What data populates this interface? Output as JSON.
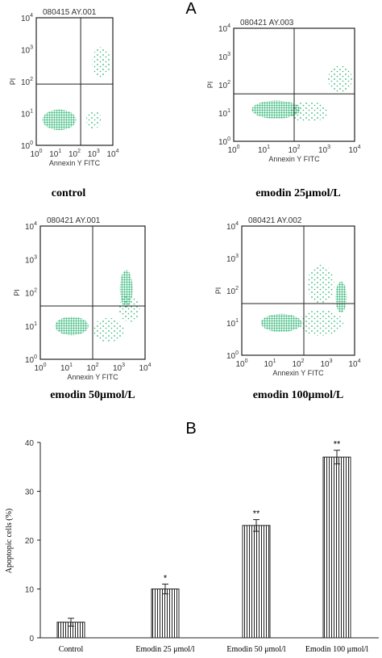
{
  "panel_a": {
    "label": "A",
    "axis_ticks": [
      {
        "base": "10",
        "exp": "0"
      },
      {
        "base": "10",
        "exp": "1"
      },
      {
        "base": "10",
        "exp": "2"
      },
      {
        "base": "10",
        "exp": "3"
      },
      {
        "base": "10",
        "exp": "4"
      }
    ],
    "plots": [
      {
        "id": "080415 AY.001",
        "caption": "control",
        "y_label": "PI",
        "x_label": "Annexin Y FITC"
      },
      {
        "id": "080421 AY.003",
        "caption": "emodin 25μmol/L",
        "y_label": "PI",
        "x_label": "Annexin Y FITC"
      },
      {
        "id": "080421 AY.001",
        "caption": "emodin 50μmol/L",
        "y_label": "PI",
        "x_label": "Annexin Y FITC"
      },
      {
        "id": "080421 AY.002",
        "caption": "emodin 100μmol/L",
        "y_label": "PI",
        "x_label": "Annexin Y FITC"
      }
    ]
  },
  "chart_data": {
    "type": "bar",
    "title": "B",
    "y_label": "Apoptopic cells (%)",
    "categories": [
      "Control",
      "Emodin  25 μmol/l",
      "Emodin  50 μmol/l",
      "Emodin  100 μmol/l"
    ],
    "values": [
      3.2,
      10,
      23,
      37
    ],
    "errors": [
      0.8,
      1,
      1.2,
      1.4
    ],
    "value_annotations": [
      null,
      "*",
      "**",
      "**"
    ],
    "ylim": [
      0,
      40
    ],
    "yticks": [
      0,
      10,
      20,
      30,
      40
    ]
  }
}
